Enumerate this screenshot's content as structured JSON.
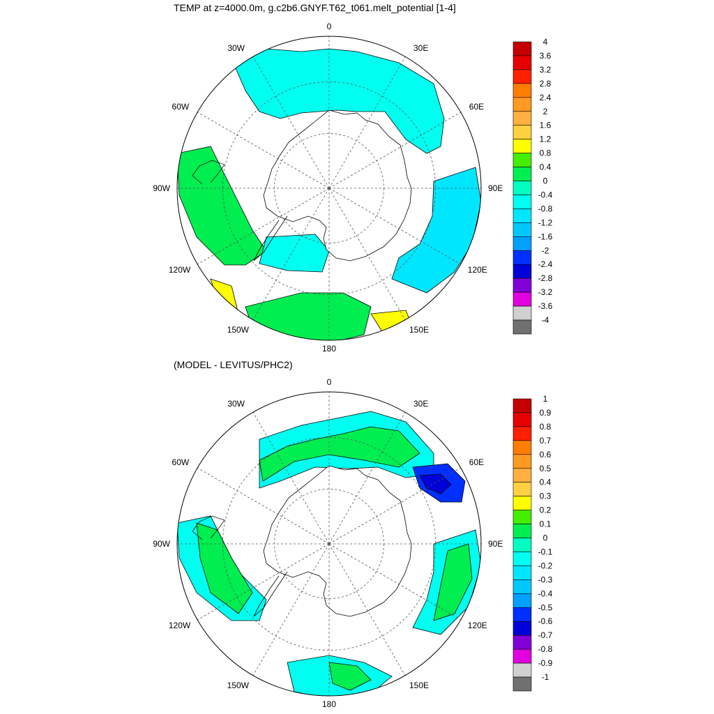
{
  "panel1": {
    "title": "TEMP at z=4000.0m, g.c2b6.GNYF.T62_t061.melt_potential [1-4]",
    "lon_labels": {
      "top": "0",
      "bottom": "180",
      "left": "90W",
      "right": "90E",
      "ul30": "30W",
      "ur30": "30E",
      "ul60": "60W",
      "ur60": "60E",
      "ll120": "120W",
      "lr120": "120E",
      "ll150": "150W",
      "lr150": "150E"
    },
    "colorbar": {
      "labels": [
        "4",
        "3.6",
        "3.2",
        "2.8",
        "2.4",
        "2",
        "1.6",
        "1.2",
        "0.8",
        "0.4",
        "0",
        "-0.4",
        "-0.8",
        "-1.2",
        "-1.6",
        "-2",
        "-2.4",
        "-2.8",
        "-3.2",
        "-3.6",
        "-4"
      ],
      "colors": [
        "#c40000",
        "#e60000",
        "#ff2000",
        "#ff7e00",
        "#ff9a20",
        "#ffb040",
        "#ffd040",
        "#ffff00",
        "#44ee00",
        "#00ee50",
        "#00ffc0",
        "#00fff0",
        "#00e6ff",
        "#00c8ff",
        "#00a0ff",
        "#0030ff",
        "#0000d8",
        "#8000d8",
        "#e000e0",
        "#d0d0d0",
        "#707070"
      ]
    }
  },
  "panel2": {
    "title": "(MODEL - LEVITUS/PHC2)",
    "lon_labels": {
      "top": "0",
      "bottom": "180",
      "left": "90W",
      "right": "90E",
      "ul30": "30W",
      "ur30": "30E",
      "ul60": "60W",
      "ur60": "60E",
      "ll120": "120W",
      "lr120": "120E",
      "ll150": "150W",
      "lr150": "150E"
    },
    "colorbar": {
      "labels": [
        "1",
        "0.9",
        "0.8",
        "0.7",
        "0.6",
        "0.5",
        "0.4",
        "0.3",
        "0.2",
        "0.1",
        "0",
        "-0.1",
        "-0.2",
        "-0.3",
        "-0.4",
        "-0.5",
        "-0.6",
        "-0.7",
        "-0.8",
        "-0.9",
        "-1"
      ],
      "colors": [
        "#c40000",
        "#e60000",
        "#ff2000",
        "#ff7e00",
        "#ff9a20",
        "#ffb040",
        "#ffd040",
        "#ffff00",
        "#44ee00",
        "#00ee50",
        "#00ffc0",
        "#00fff0",
        "#00e6ff",
        "#00c8ff",
        "#00a0ff",
        "#0030ff",
        "#0000d8",
        "#8000d8",
        "#e000e0",
        "#d0d0d0",
        "#707070"
      ]
    }
  },
  "colors": {
    "green": "#00ee50",
    "cyan": "#00ffc0",
    "lightcyan": "#00fff0",
    "skyblue": "#00e6ff",
    "blue": "#00c8ff",
    "yellow": "#ffff00",
    "lime": "#44ee00",
    "deepblue": "#0000d8",
    "royal": "#0030ff",
    "line": "#000000",
    "grid": "#555555"
  }
}
